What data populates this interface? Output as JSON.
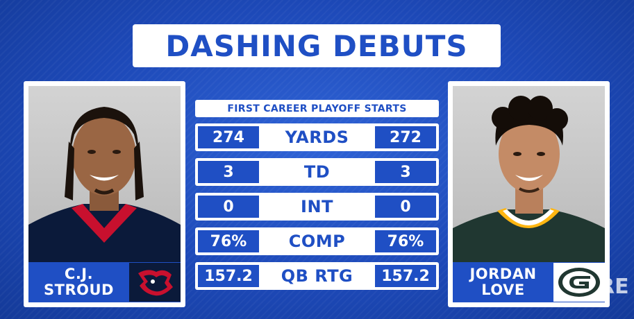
{
  "title": "DASHING DEBUTS",
  "subtitle": "FIRST CAREER PLAYOFF STARTS",
  "left_player": {
    "name_line1": "C.J.",
    "name_line2": "STROUD"
  },
  "right_player": {
    "name_line1": "JORDAN",
    "name_line2": "LOVE"
  },
  "stats": [
    {
      "label": "YARDS",
      "left": "274",
      "right": "272"
    },
    {
      "label": "TD",
      "left": "3",
      "right": "3"
    },
    {
      "label": "INT",
      "left": "0",
      "right": "0"
    },
    {
      "label": "COMP",
      "left": "76%",
      "right": "76%"
    },
    {
      "label": "QB RTG",
      "left": "157.2",
      "right": "157.2"
    }
  ],
  "watermark": "RE",
  "colors": {
    "background": "#1d49b8",
    "accent_blue": "#1f4fc4",
    "texans_navy": "#0b1a3a",
    "texans_red": "#c8102e",
    "packers_green": "#203731",
    "packers_gold": "#ffb612"
  },
  "icons": {
    "left_logo": "texans-bull-logo",
    "right_logo": "packers-g-logo"
  }
}
